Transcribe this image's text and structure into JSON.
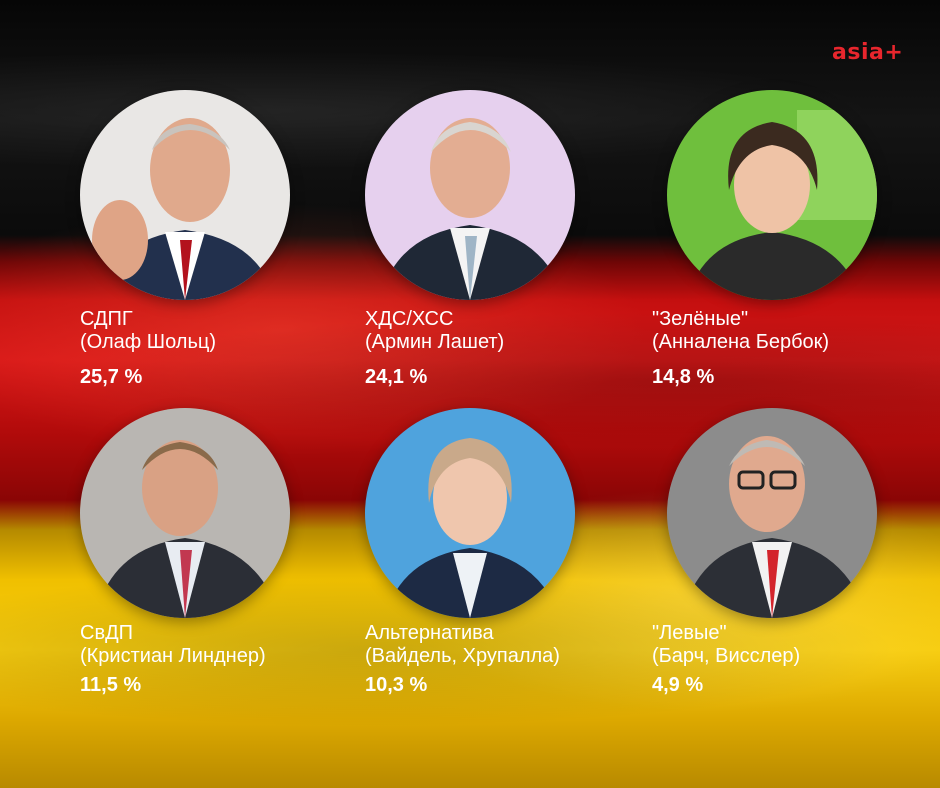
{
  "brand": {
    "logo_text": "asia+",
    "logo_color": "#e8262d"
  },
  "candidates": [
    {
      "party": "СДПГ",
      "leader": "(Олаф Шольц)",
      "percent": "25,7 %",
      "portrait": "olaf-scholz-portrait"
    },
    {
      "party": "ХДС/ХСС",
      "leader": "(Армин Лашет)",
      "percent": "24,1 %",
      "portrait": "armin-laschet-portrait"
    },
    {
      "party": "\"Зелёные\"",
      "leader": "(Анналена Бербок)",
      "percent": "14,8 %",
      "portrait": "annalena-baerbock-portrait"
    },
    {
      "party": "СвДП",
      "leader": "(Кристиан Линднер)",
      "percent": "11,5 %",
      "portrait": "christian-lindner-portrait"
    },
    {
      "party": "Альтернатива",
      "leader": "(Вайдель, Хрупалла)",
      "percent": "10,3 %",
      "portrait": "alice-weidel-portrait"
    },
    {
      "party": "\"Левые\"",
      "leader": "(Барч, Висслер)",
      "percent": "4,9 %",
      "portrait": "dietmar-bartsch-portrait"
    }
  ],
  "flag_colors": {
    "black": "#0b0b0b",
    "red": "#d81818",
    "gold": "#f0c000"
  }
}
